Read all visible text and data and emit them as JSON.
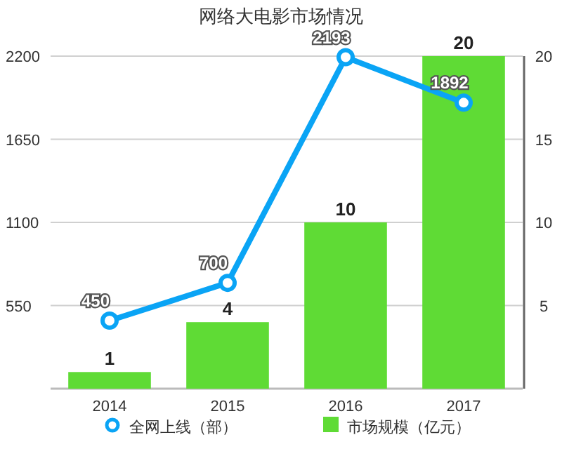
{
  "chart_data": {
    "type": "bar",
    "title": "网络大电影市场情况",
    "categories": [
      "2014",
      "2015",
      "2016",
      "2017"
    ],
    "series": [
      {
        "name": "全网上线（部）",
        "type": "line",
        "color": "#0aa4f5",
        "values": [
          450,
          700,
          2193,
          1892
        ]
      },
      {
        "name": "市场规模（亿元）",
        "axis": "y2",
        "color": "#5fdb35",
        "values": [
          1,
          4,
          10,
          20
        ]
      }
    ],
    "ylim": [
      0,
      2200
    ],
    "yticks": [
      550,
      1100,
      1650,
      2200
    ],
    "y2lim": [
      0,
      20
    ],
    "y2ticks": [
      5,
      10,
      15,
      20
    ],
    "grid": "y",
    "legend": "bottom",
    "data_labels": true,
    "marker": "circle"
  }
}
